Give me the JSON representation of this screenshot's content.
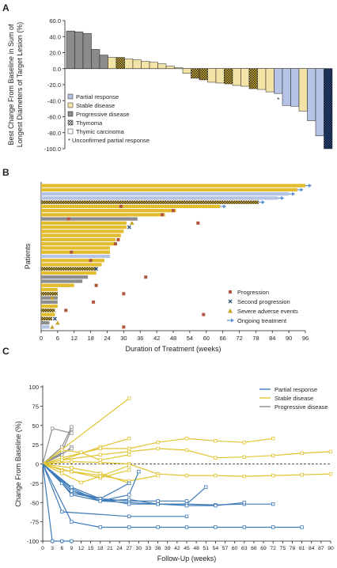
{
  "panels": {
    "a": {
      "letter": "A"
    },
    "b": {
      "letter": "B"
    },
    "c": {
      "letter": "C"
    }
  },
  "colors": {
    "partial_response": "#b4c3e6",
    "stable_disease": "#f2e3a7",
    "progressive_disease": "#8c8c8c",
    "bar_gold": "#e3bc2d",
    "progression_marker": "#b05540",
    "second_progression_marker": "#2b4a7a",
    "adverse_marker": "#c6a21e",
    "ongoing_arrow": "#5b8fd0",
    "line_pr": "#3d7ab8",
    "line_sd": "#e0c430",
    "line_pd": "#8f8f8f"
  },
  "chart_data": [
    {
      "type": "bar",
      "ylabel_lines": [
        "Best Change From Baseline in Sum of",
        "Longest Diameters of Target Lesion (%)"
      ],
      "ylim": [
        -100,
        60
      ],
      "yticks": [
        "60.0",
        "40.0",
        "20.0",
        "0.0",
        "-20.0",
        "-40.0",
        "-60.0",
        "-80.0",
        "-100.0"
      ],
      "values": [
        47,
        46,
        44,
        24,
        17,
        14,
        14,
        12,
        11,
        9,
        8,
        6,
        3,
        1,
        -6,
        -12,
        -14,
        -17,
        -18,
        -19,
        -21,
        -22,
        -25,
        -26,
        -29,
        -31,
        -46,
        -47,
        -53,
        -65,
        -84,
        -100
      ],
      "kinds": [
        "pd",
        "pd",
        "pd",
        "pd",
        "pd",
        "tc",
        "thy",
        "tc",
        "tc",
        "tc",
        "tc",
        "tc",
        "tc",
        "tc",
        "tc",
        "thy",
        "thy",
        "tc",
        "tc",
        "thy",
        "tc",
        "tc",
        "thy",
        "tc",
        "tc",
        "pr",
        "pr",
        "pr",
        "tc",
        "pr",
        "pr",
        "thy_pr"
      ],
      "unconfirmed_index": 25,
      "legend": [
        {
          "label": "Partial response",
          "key": "pr"
        },
        {
          "label": "Stable disease",
          "key": "sd"
        },
        {
          "label": "Progressive disease",
          "key": "pd"
        },
        {
          "label": "Thymoma",
          "key": "thy"
        },
        {
          "label": "Thymic carcinoma",
          "key": "tc"
        }
      ],
      "footnote": "* Unconfirmed partial response",
      "asterisk": "*"
    },
    {
      "type": "bar",
      "orientation": "horizontal",
      "xlabel": "Duration of Treatment (weeks)",
      "ylabel": "Patients",
      "xlim": [
        0,
        96
      ],
      "xticks": [
        0,
        6,
        12,
        18,
        24,
        30,
        36,
        42,
        48,
        54,
        60,
        66,
        72,
        78,
        84,
        90,
        96
      ],
      "bars": [
        {
          "v": 96,
          "k": "gold",
          "ongoing": true
        },
        {
          "v": 93,
          "k": "gold",
          "ongoing": true
        },
        {
          "v": 90,
          "k": "pr",
          "ongoing": true
        },
        {
          "v": 86,
          "k": "pr",
          "ongoing": true
        },
        {
          "v": 79,
          "k": "thy",
          "ongoing": true
        },
        {
          "v": 65,
          "k": "gold",
          "ongoing": true
        },
        {
          "v": 49,
          "k": "gold"
        },
        {
          "v": 45,
          "k": "gold"
        },
        {
          "v": 35,
          "k": "gray"
        },
        {
          "v": 31,
          "k": "gold"
        },
        {
          "v": 31,
          "k": "gold"
        },
        {
          "v": 30,
          "k": "gold"
        },
        {
          "v": 29,
          "k": "gold"
        },
        {
          "v": 27,
          "k": "gold"
        },
        {
          "v": 27,
          "k": "gold"
        },
        {
          "v": 25,
          "k": "gold"
        },
        {
          "v": 25,
          "k": "gold"
        },
        {
          "v": 25,
          "k": "pr"
        },
        {
          "v": 23,
          "k": "gold"
        },
        {
          "v": 22,
          "k": "gold"
        },
        {
          "v": 20,
          "k": "thy"
        },
        {
          "v": 20,
          "k": "gold"
        },
        {
          "v": 17,
          "k": "gray"
        },
        {
          "v": 15,
          "k": "gray"
        },
        {
          "v": 12,
          "k": "gold"
        },
        {
          "v": 6,
          "k": "gold"
        },
        {
          "v": 6,
          "k": "thy"
        },
        {
          "v": 6,
          "k": "gray"
        },
        {
          "v": 6,
          "k": "gray"
        },
        {
          "v": 6,
          "k": "gold"
        },
        {
          "v": 5,
          "k": "thy"
        },
        {
          "v": 5,
          "k": "gold"
        },
        {
          "v": 4,
          "k": "thy"
        },
        {
          "v": 3,
          "k": "gray"
        },
        {
          "v": 3,
          "k": "pr"
        }
      ],
      "progression": [
        [
          29,
          5
        ],
        [
          48,
          6
        ],
        [
          44,
          7
        ],
        [
          10,
          8
        ],
        [
          57,
          9
        ],
        [
          28,
          13
        ],
        [
          27,
          14
        ],
        [
          11,
          16
        ],
        [
          18,
          18
        ],
        [
          38,
          22
        ],
        [
          20,
          24
        ],
        [
          30,
          26
        ],
        [
          19,
          28
        ],
        [
          9,
          30
        ],
        [
          59,
          31
        ],
        [
          30,
          34
        ]
      ],
      "second_progression": [
        [
          32,
          10
        ],
        [
          20,
          20
        ],
        [
          5,
          32
        ]
      ],
      "adverse": [
        [
          33,
          9
        ],
        [
          4,
          27
        ],
        [
          6,
          33
        ],
        [
          4,
          34
        ]
      ],
      "legend": [
        {
          "label": "Progression",
          "key": "progression"
        },
        {
          "label": "Second progression",
          "key": "second_progression"
        },
        {
          "label": "Severe adverse events",
          "key": "adverse"
        },
        {
          "label": "Ongoing treatment",
          "key": "ongoing"
        }
      ]
    },
    {
      "type": "line",
      "xlabel": "Follow-Up (weeks)",
      "ylabel": "Change From Baseline (%)",
      "xlim": [
        0,
        90
      ],
      "ylim": [
        -100,
        100
      ],
      "xticks": [
        0,
        3,
        6,
        9,
        12,
        15,
        18,
        21,
        24,
        27,
        30,
        33,
        36,
        39,
        42,
        45,
        48,
        51,
        54,
        57,
        60,
        63,
        66,
        69,
        72,
        75,
        78,
        81,
        84,
        87,
        90
      ],
      "yticks": [
        100,
        75,
        50,
        25,
        0,
        -25,
        -50,
        -75,
        -100
      ],
      "legend": [
        {
          "label": "Partial response",
          "key": "pr"
        },
        {
          "label": "Stable disease",
          "key": "sd"
        },
        {
          "label": "Progressive disease",
          "key": "pd"
        }
      ],
      "series": [
        {
          "g": "pd",
          "x": [
            0,
            6,
            9
          ],
          "y": [
            0,
            15,
            45
          ]
        },
        {
          "g": "pd",
          "x": [
            0,
            6,
            9
          ],
          "y": [
            0,
            22,
            48
          ]
        },
        {
          "g": "pd",
          "x": [
            0,
            3,
            9
          ],
          "y": [
            0,
            46,
            40
          ]
        },
        {
          "g": "pd",
          "x": [
            0,
            6,
            9
          ],
          "y": [
            0,
            12,
            22
          ]
        },
        {
          "g": "pd",
          "x": [
            0,
            9
          ],
          "y": [
            0,
            20
          ]
        },
        {
          "g": "sd",
          "x": [
            0,
            27
          ],
          "y": [
            0,
            85
          ]
        },
        {
          "g": "sd",
          "x": [
            0,
            6,
            18,
            27
          ],
          "y": [
            0,
            5,
            22,
            33
          ]
        },
        {
          "g": "sd",
          "x": [
            0,
            6,
            18,
            27,
            36,
            45,
            54,
            63,
            72
          ],
          "y": [
            0,
            8,
            20,
            20,
            28,
            33,
            30,
            28,
            33
          ]
        },
        {
          "g": "sd",
          "x": [
            0,
            6,
            18,
            27,
            36,
            45,
            54,
            63,
            72,
            81,
            90
          ],
          "y": [
            0,
            5,
            12,
            16,
            20,
            18,
            8,
            9,
            11,
            14,
            16
          ]
        },
        {
          "g": "sd",
          "x": [
            0,
            9,
            18,
            27,
            36,
            45,
            54,
            63,
            72,
            81,
            90
          ],
          "y": [
            0,
            3,
            2,
            0,
            -13,
            -15,
            -15,
            -16,
            -15,
            -14,
            -13
          ]
        },
        {
          "g": "sd",
          "x": [
            0,
            6,
            18,
            27,
            36
          ],
          "y": [
            0,
            -8,
            -15,
            -22,
            -15
          ]
        },
        {
          "g": "sd",
          "x": [
            0,
            9,
            18,
            27
          ],
          "y": [
            0,
            -5,
            -12,
            -25
          ]
        },
        {
          "g": "sd",
          "x": [
            0,
            6,
            12,
            18,
            27
          ],
          "y": [
            0,
            18,
            15,
            5,
            12
          ]
        },
        {
          "g": "sd",
          "x": [
            0,
            9,
            18,
            27
          ],
          "y": [
            0,
            -10,
            -18,
            -8
          ]
        },
        {
          "g": "sd",
          "x": [
            0,
            6,
            12,
            18,
            27
          ],
          "y": [
            0,
            -12,
            -24,
            -16,
            -2
          ]
        },
        {
          "g": "pr",
          "x": [
            0,
            9,
            18,
            27
          ],
          "y": [
            0,
            -38,
            -45,
            -25
          ]
        },
        {
          "g": "pr",
          "x": [
            0,
            9,
            18,
            27,
            36,
            45
          ],
          "y": [
            0,
            -35,
            -45,
            -48,
            -48,
            -48
          ]
        },
        {
          "g": "pr",
          "x": [
            0,
            9,
            18,
            27,
            36,
            45,
            54,
            63,
            72
          ],
          "y": [
            0,
            -32,
            -48,
            -50,
            -52,
            -52,
            -53,
            -52,
            -52
          ]
        },
        {
          "g": "pr",
          "x": [
            0,
            9,
            18,
            27,
            36,
            45,
            51
          ],
          "y": [
            0,
            -30,
            -45,
            -52,
            -52,
            -52,
            -30
          ]
        },
        {
          "g": "pr",
          "x": [
            0,
            6,
            9,
            18,
            27,
            36,
            45,
            54,
            63
          ],
          "y": [
            0,
            -25,
            -40,
            -48,
            -46,
            -52,
            -54,
            -54,
            -50
          ]
        },
        {
          "g": "pr",
          "x": [
            0,
            9,
            18,
            27,
            30
          ],
          "y": [
            0,
            -35,
            -48,
            -40,
            -10
          ]
        },
        {
          "g": "pr",
          "x": [
            0,
            6,
            27,
            45
          ],
          "y": [
            0,
            -62,
            -68,
            -68
          ]
        },
        {
          "g": "pr",
          "x": [
            0,
            9,
            18,
            27,
            36,
            45,
            54,
            63,
            72,
            81
          ],
          "y": [
            0,
            -75,
            -82,
            -82,
            -82,
            -82,
            -82,
            -82,
            -82,
            -82
          ]
        },
        {
          "g": "pr",
          "x": [
            0,
            3,
            6,
            9
          ],
          "y": [
            0,
            -100,
            -100,
            -100
          ]
        }
      ]
    }
  ]
}
